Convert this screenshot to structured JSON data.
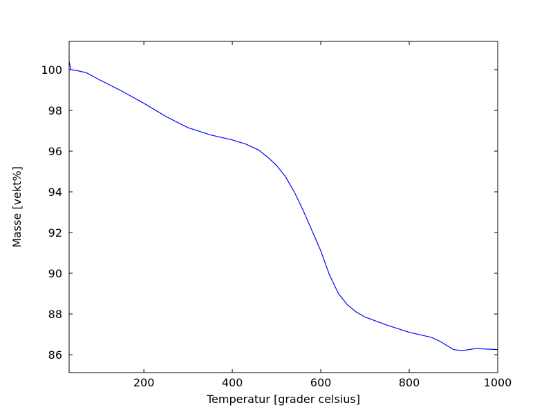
{
  "chart_data": {
    "type": "line",
    "xlabel": "Temperatur [grader celsius]",
    "ylabel": "Masse [vekt%]",
    "x": [
      31,
      35,
      50,
      70,
      100,
      150,
      200,
      250,
      300,
      350,
      400,
      430,
      460,
      480,
      500,
      520,
      540,
      560,
      580,
      600,
      620,
      640,
      660,
      680,
      700,
      750,
      800,
      850,
      870,
      900,
      920,
      950,
      1000
    ],
    "series": [
      {
        "name": "Masse",
        "color": "#0000ff",
        "values": [
          100.4,
          100.0,
          99.95,
          99.85,
          99.5,
          98.95,
          98.35,
          97.7,
          97.15,
          96.8,
          96.55,
          96.35,
          96.05,
          95.7,
          95.3,
          94.75,
          94.0,
          93.1,
          92.1,
          91.1,
          89.9,
          89.0,
          88.45,
          88.1,
          87.85,
          87.45,
          87.1,
          86.85,
          86.65,
          86.25,
          86.2,
          86.3,
          86.25
        ]
      }
    ],
    "xlim": [
      31,
      1000
    ],
    "ylim": [
      85.12,
      101.39
    ],
    "xticks": [
      200,
      400,
      600,
      800,
      1000
    ],
    "yticks": [
      86,
      88,
      90,
      92,
      94,
      96,
      98,
      100
    ],
    "grid": false
  }
}
